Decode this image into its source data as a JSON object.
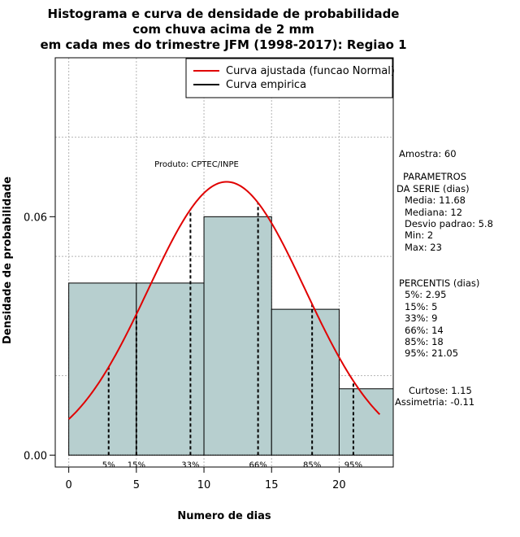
{
  "chart_data": {
    "type": "bar",
    "title_lines": [
      "Histograma e curva de densidade de probabilidade",
      "com chuva acima de 2 mm",
      "em cada mes do trimestre JFM (1998-2017): Regiao 1"
    ],
    "xlabel": "Numero de dias",
    "ylabel": "Densidade de probabilidade",
    "xlim": [
      -1,
      24
    ],
    "ylim": [
      -0.003,
      0.1
    ],
    "grid": true,
    "x_ticks": [
      0,
      5,
      10,
      15,
      20
    ],
    "x_tick_labels": [
      "0",
      "5",
      "10",
      "15",
      "20"
    ],
    "y_ticks": [
      0.0,
      0.06
    ],
    "y_tick_labels": [
      "0.00",
      "0.06"
    ],
    "bins": [
      {
        "from": 0,
        "to": 5,
        "density": 0.0433
      },
      {
        "from": 5,
        "to": 10,
        "density": 0.0433
      },
      {
        "from": 10,
        "to": 15,
        "density": 0.06
      },
      {
        "from": 15,
        "to": 20,
        "density": 0.0367
      },
      {
        "from": 20,
        "to": 24,
        "density": 0.0167
      }
    ],
    "normal_curve": {
      "name": "Curva ajustada (funcao Normal)",
      "mean": 11.68,
      "sd": 5.8,
      "x_from": 0,
      "x_to": 23,
      "color": "#e00000"
    },
    "empirical_curve": {
      "name": "Curva empirica",
      "color": "#000000"
    },
    "percentile_markers": [
      {
        "x": 2.95,
        "label": "5%"
      },
      {
        "x": 5,
        "label": "15%"
      },
      {
        "x": 9,
        "label": "33%"
      },
      {
        "x": 14,
        "label": "66%"
      },
      {
        "x": 18,
        "label": "85%"
      },
      {
        "x": 21.05,
        "label": "95%"
      }
    ],
    "legend_placement": "top-right",
    "bar_color": "#b7cfcf",
    "product_label": "Produto: CPTEC/INPE"
  },
  "side_panel": {
    "amostra": "Amostra: 60",
    "parametros_title_1": "PARAMETROS",
    "parametros_title_2": "DA SERIE (dias)",
    "parametros": [
      "Media: 11.68",
      "Mediana: 12",
      "Desvio padrao: 5.8",
      "Min: 2",
      "Max: 23"
    ],
    "percentis_title": "PERCENTIS (dias)",
    "percentis": [
      "5%: 2.95",
      "15%: 5",
      "33%: 9",
      "66%: 14",
      "85%: 18",
      "95%: 21.05"
    ],
    "curtose": "Curtose: 1.15",
    "assimetria": "Assimetria: -0.11"
  }
}
